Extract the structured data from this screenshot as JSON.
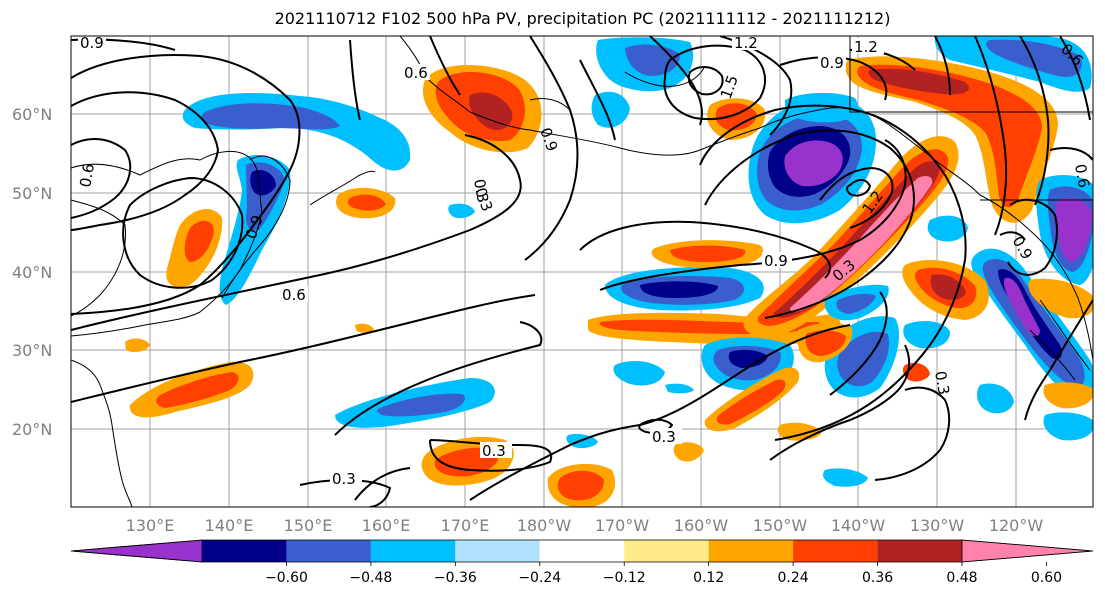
{
  "title": "2021110712 F102 500 hPa PV, precipitation PC (2021111112 - 2021111212)",
  "map": {
    "lat_labels": [
      "60°N",
      "50°N",
      "40°N",
      "30°N",
      "20°N"
    ],
    "lon_labels": [
      "130°E",
      "140°E",
      "150°E",
      "160°E",
      "170°E",
      "180°W",
      "170°W",
      "160°W",
      "150°W",
      "140°W",
      "130°W",
      "120°W"
    ],
    "contour_labels": [
      "0.9",
      "1.2",
      "1.2",
      "0.9",
      "0.6",
      "0.9",
      "1.5",
      "0.6",
      "0.9",
      "0.6",
      "0.3",
      "1.2",
      "0.9",
      "0.3",
      "0.9",
      "0.6",
      "0.3",
      "0.3",
      "0.3",
      "0.3",
      "0.6",
      "0.3"
    ]
  },
  "colorbar": {
    "colors": [
      "#9932cc",
      "#00008b",
      "#3a5fcd",
      "#00bfff",
      "#b0e2ff",
      "#ffffff",
      "#ffeb8a",
      "#ffa500",
      "#ff4000",
      "#b22222",
      "#ff82ab"
    ],
    "tick_labels": [
      "−0.60",
      "−0.48",
      "−0.36",
      "−0.24",
      "−0.12",
      "0.12",
      "0.24",
      "0.36",
      "0.48",
      "0.60"
    ]
  }
}
